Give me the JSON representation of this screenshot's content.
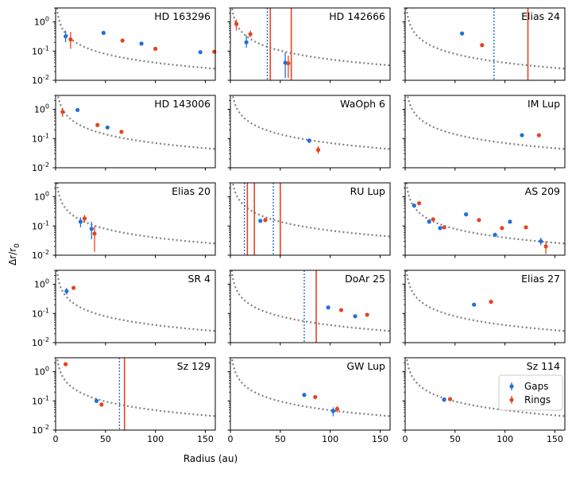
{
  "colors": {
    "gap": "#1f6fe0",
    "ring": "#e8431f",
    "curve": "#808080"
  },
  "labels": {
    "xlabel": "Radius (au)",
    "ylabel_main": "Δr/r",
    "ylabel_sub": "0"
  },
  "legend": {
    "gaps": "Gaps",
    "rings": "Rings"
  },
  "chart_data": {
    "type": "scatter",
    "xlim": [
      0,
      160
    ],
    "ylim": [
      0.01,
      3
    ],
    "yscale": "log",
    "x_ticks": [
      "0",
      "50",
      "100",
      "150"
    ],
    "y_ticks": [
      {
        "base": "10",
        "exp": "0",
        "value": 1
      },
      {
        "base": "10",
        "exp": "-1",
        "value": 0.1
      },
      {
        "base": "10",
        "exp": "-2",
        "value": 0.01
      }
    ],
    "panels": [
      {
        "name": "HD 163296",
        "curve_k": 4.0,
        "gaps": [
          [
            10,
            0.32,
            0.2,
            0.5
          ],
          [
            48,
            0.42
          ],
          [
            86,
            0.18
          ],
          [
            145,
            0.092
          ]
        ],
        "rings": [
          [
            15,
            0.25,
            0.12,
            0.45
          ],
          [
            67,
            0.23
          ],
          [
            100,
            0.12
          ],
          [
            159,
            0.095
          ]
        ],
        "gap_lines": [],
        "ring_lines": []
      },
      {
        "name": "HD 142666",
        "curve_k": 5.2,
        "gaps": [
          [
            16,
            0.2,
            0.13,
            0.35
          ],
          [
            55,
            0.04,
            0.012,
            0.09
          ]
        ],
        "rings": [
          [
            6,
            0.85,
            0.5,
            1.2
          ],
          [
            20,
            0.38,
            0.3,
            0.5
          ],
          [
            58,
            0.038,
            0.012,
            0.07
          ]
        ],
        "gap_lines": [
          37
        ],
        "ring_lines": [
          40,
          61
        ]
      },
      {
        "name": "Elias 24",
        "curve_k": 4.0,
        "gaps": [
          [
            57,
            0.4
          ]
        ],
        "rings": [
          [
            77,
            0.16
          ]
        ],
        "gap_lines": [
          89
        ],
        "ring_lines": [
          123
        ]
      },
      {
        "name": "HD 143006",
        "curve_k": 7.0,
        "gaps": [
          [
            22,
            0.95
          ],
          [
            52,
            0.24
          ]
        ],
        "rings": [
          [
            7,
            0.82,
            0.55,
            1.1
          ],
          [
            42,
            0.29
          ],
          [
            66,
            0.17
          ]
        ],
        "gap_lines": [],
        "ring_lines": []
      },
      {
        "name": "WaOph 6",
        "curve_k": 7.0,
        "gaps": [
          [
            79,
            0.085,
            0.07,
            0.1
          ]
        ],
        "rings": [
          [
            88,
            0.041,
            0.03,
            0.055
          ]
        ],
        "gap_lines": [],
        "ring_lines": []
      },
      {
        "name": "IM Lup",
        "curve_k": 7.0,
        "gaps": [
          [
            117,
            0.13
          ]
        ],
        "rings": [
          [
            134,
            0.13
          ]
        ],
        "gap_lines": [],
        "ring_lines": []
      },
      {
        "name": "Elias 20",
        "curve_k": 4.0,
        "gaps": [
          [
            25,
            0.14,
            0.09,
            0.2
          ],
          [
            36,
            0.08,
            0.035,
            0.14
          ]
        ],
        "rings": [
          [
            29,
            0.18,
            0.13,
            0.24
          ],
          [
            39,
            0.055,
            0.013,
            0.1
          ]
        ],
        "gap_lines": [],
        "ring_lines": []
      },
      {
        "name": "RU Lup",
        "curve_k": 7.0,
        "gaps": [
          [
            30,
            0.15
          ]
        ],
        "rings": [
          [
            35,
            0.16
          ]
        ],
        "gap_lines": [
          14,
          43
        ],
        "ring_lines": [
          17,
          24,
          50
        ]
      },
      {
        "name": "AS 209",
        "curve_k": 4.0,
        "gaps": [
          [
            9,
            0.5
          ],
          [
            24,
            0.14
          ],
          [
            35,
            0.085
          ],
          [
            61,
            0.25
          ],
          [
            90,
            0.05
          ],
          [
            105,
            0.14
          ],
          [
            136,
            0.03,
            0.022,
            0.04
          ]
        ],
        "rings": [
          [
            14,
            0.6
          ],
          [
            28,
            0.17
          ],
          [
            39,
            0.09
          ],
          [
            74,
            0.16
          ],
          [
            97,
            0.085
          ],
          [
            121,
            0.09
          ],
          [
            141,
            0.02,
            0.011,
            0.03
          ]
        ],
        "gap_lines": [],
        "ring_lines": []
      },
      {
        "name": "SR 4",
        "curve_k": 4.0,
        "gaps": [
          [
            11,
            0.58,
            0.44,
            0.75
          ]
        ],
        "rings": [
          [
            18,
            0.75
          ]
        ],
        "gap_lines": [],
        "ring_lines": []
      },
      {
        "name": "DoAr 25",
        "curve_k": 4.0,
        "gaps": [
          [
            98,
            0.16
          ],
          [
            125,
            0.08
          ]
        ],
        "rings": [
          [
            111,
            0.13
          ],
          [
            137,
            0.09
          ]
        ],
        "gap_lines": [
          74
        ],
        "ring_lines": [
          86
        ]
      },
      {
        "name": "Elias 27",
        "curve_k": 4.0,
        "gaps": [
          [
            69,
            0.2
          ]
        ],
        "rings": [
          [
            86,
            0.25
          ]
        ],
        "gap_lines": [],
        "ring_lines": []
      },
      {
        "name": "Sz 129",
        "curve_k": 4.8,
        "gaps": [
          [
            41,
            0.1,
            0.085,
            0.12
          ]
        ],
        "rings": [
          [
            10,
            1.8
          ],
          [
            46,
            0.075,
            0.063,
            0.09
          ]
        ],
        "gap_lines": [
          64
        ],
        "ring_lines": [
          69
        ]
      },
      {
        "name": "GW Lup",
        "curve_k": 4.8,
        "gaps": [
          [
            74,
            0.16
          ],
          [
            103,
            0.045,
            0.03,
            0.06
          ]
        ],
        "rings": [
          [
            85,
            0.135
          ],
          [
            107,
            0.053,
            0.04,
            0.065
          ]
        ],
        "gap_lines": [],
        "ring_lines": []
      },
      {
        "name": "Sz 114",
        "curve_k": 4.8,
        "gaps": [
          [
            39,
            0.11,
            0.095,
            0.13
          ]
        ],
        "rings": [
          [
            45,
            0.115,
            0.1,
            0.13
          ]
        ],
        "gap_lines": [],
        "ring_lines": []
      }
    ]
  }
}
